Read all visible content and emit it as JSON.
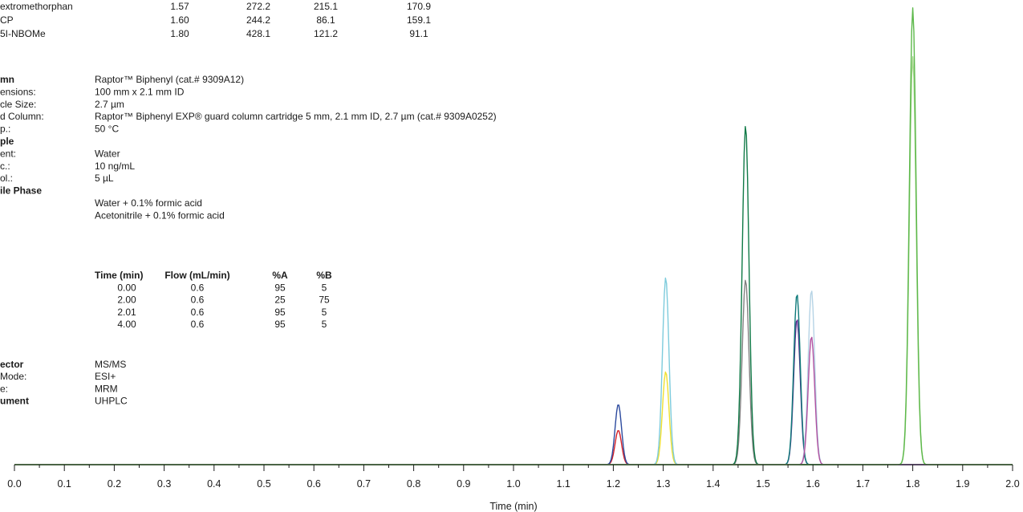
{
  "compound_table": {
    "rows": [
      {
        "name": "extromethorphan",
        "rt": "1.57",
        "precursor": "272.2",
        "product1": "215.1",
        "product2": "170.9"
      },
      {
        "name": "CP",
        "rt": "1.60",
        "precursor": "244.2",
        "product1": "86.1",
        "product2": "159.1"
      },
      {
        "name": "5I-NBOMe",
        "rt": "1.80",
        "precursor": "428.1",
        "product1": "121.2",
        "product2": "91.1"
      }
    ]
  },
  "conditions": {
    "lines": [
      {
        "label": "mn",
        "value": "Raptor™ Biphenyl (cat.# 9309A12)",
        "bold": true
      },
      {
        "label": "ensions:",
        "value": "100 mm x 2.1 mm ID",
        "bold": false
      },
      {
        "label": "cle Size:",
        "value": "2.7 µm",
        "bold": false
      },
      {
        "label": "d Column:",
        "value": "Raptor™ Biphenyl EXP® guard column cartridge 5 mm, 2.1 mm ID, 2.7 µm (cat.# 9309A0252)",
        "bold": false
      },
      {
        "label": "p.:",
        "value": "50 °C",
        "bold": false
      },
      {
        "label": "ple",
        "value": "",
        "bold": true
      },
      {
        "label": "ent:",
        "value": "Water",
        "bold": false
      },
      {
        "label": "c.:",
        "value": "10 ng/mL",
        "bold": false
      },
      {
        "label": "ol.:",
        "value": "5 µL",
        "bold": false
      },
      {
        "label": "ile Phase",
        "value": "",
        "bold": true
      },
      {
        "label": "",
        "value": "Water + 0.1% formic acid",
        "bold": false
      },
      {
        "label": "",
        "value": "Acetonitrile + 0.1% formic acid",
        "bold": false
      }
    ],
    "gradient": {
      "headers": [
        "Time (min)",
        "Flow (mL/min)",
        "%A",
        "%B"
      ],
      "rows": [
        [
          "0.00",
          "0.6",
          "95",
          "5"
        ],
        [
          "2.00",
          "0.6",
          "25",
          "75"
        ],
        [
          "2.01",
          "0.6",
          "95",
          "5"
        ],
        [
          "4.00",
          "0.6",
          "95",
          "5"
        ]
      ]
    },
    "detector_lines": [
      {
        "label": "ector",
        "value": "MS/MS",
        "bold": true
      },
      {
        "label": "Mode:",
        "value": "ESI+",
        "bold": false
      },
      {
        "label": "e:",
        "value": "MRM",
        "bold": false
      },
      {
        "label": "ument",
        "value": "UHPLC",
        "bold": true
      }
    ]
  },
  "chart_data": {
    "type": "line",
    "xlabel": "Time (min)",
    "xlim": [
      0.0,
      2.0
    ],
    "ylim": [
      0,
      100
    ],
    "x_ticks": [
      "0.0",
      "0.1",
      "0.2",
      "0.3",
      "0.4",
      "0.5",
      "0.6",
      "0.7",
      "0.8",
      "0.9",
      "1.0",
      "1.1",
      "1.2",
      "1.3",
      "1.4",
      "1.5",
      "1.6",
      "1.7",
      "1.8",
      "1.9",
      "2.0"
    ],
    "grid": false,
    "legend": "none",
    "peaks": [
      {
        "color": "#d42027",
        "rt": 1.21,
        "height": 7.4,
        "width": 0.0065
      },
      {
        "color": "#2c4a9e",
        "rt": 1.21,
        "height": 13.0,
        "width": 0.0065
      },
      {
        "color": "#f0e030",
        "rt": 1.305,
        "height": 20.0,
        "width": 0.0065
      },
      {
        "color": "#7dcbdc",
        "rt": 1.305,
        "height": 40.3,
        "width": 0.0065
      },
      {
        "color": "#808080",
        "rt": 1.465,
        "height": 39.8,
        "width": 0.0068
      },
      {
        "color": "#107a47",
        "rt": 1.465,
        "height": 73.0,
        "width": 0.0068
      },
      {
        "color": "#5b2c8f",
        "rt": 1.568,
        "height": 31.4,
        "width": 0.0065
      },
      {
        "color": "#0e7a7a",
        "rt": 1.568,
        "height": 36.8,
        "width": 0.0065
      },
      {
        "color": "#b5d3e5",
        "rt": 1.597,
        "height": 37.6,
        "width": 0.0065
      },
      {
        "color": "#b050a0",
        "rt": 1.597,
        "height": 27.6,
        "width": 0.0065
      },
      {
        "color": "#a8d890",
        "rt": 1.8,
        "height": 87.8,
        "width": 0.0068
      },
      {
        "color": "#5cb84a",
        "rt": 1.8,
        "height": 98.3,
        "width": 0.0068
      }
    ]
  }
}
